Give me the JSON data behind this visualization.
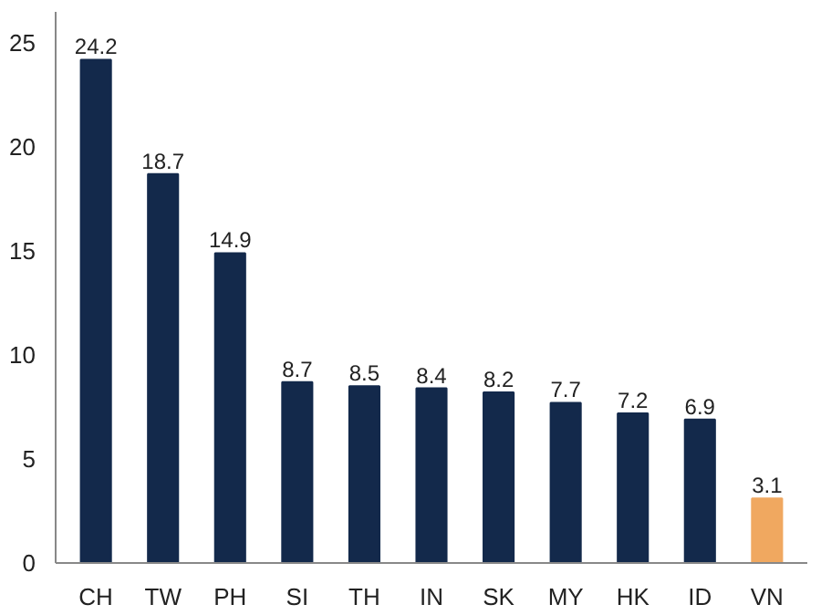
{
  "chart_data": {
    "type": "bar",
    "categories": [
      "CH",
      "TW",
      "PH",
      "SI",
      "TH",
      "IN",
      "SK",
      "MY",
      "HK",
      "ID",
      "VN"
    ],
    "values": [
      24.2,
      18.7,
      14.9,
      8.7,
      8.5,
      8.4,
      8.2,
      7.7,
      7.2,
      6.9,
      3.1
    ],
    "colors": [
      "#13294b",
      "#13294b",
      "#13294b",
      "#13294b",
      "#13294b",
      "#13294b",
      "#13294b",
      "#13294b",
      "#13294b",
      "#13294b",
      "#f0a860"
    ],
    "ylim": [
      0,
      26.5
    ],
    "yticks": [
      0,
      5,
      10,
      15,
      20,
      25
    ],
    "grid": false,
    "data_labels": true
  }
}
